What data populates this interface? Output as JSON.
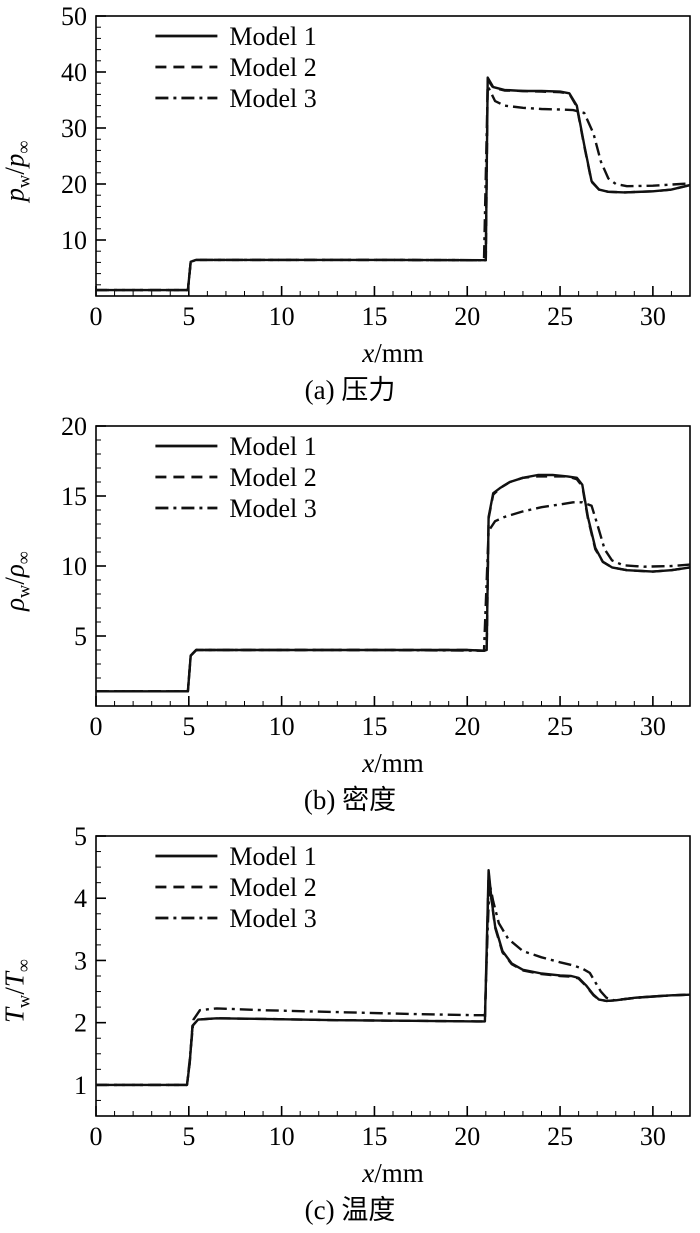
{
  "style": {
    "line_color": "#111111",
    "axis_color": "#000000",
    "background": "#ffffff"
  },
  "chart_data": [
    {
      "type": "line",
      "caption": "(a) 压力",
      "xlabel": {
        "var": "x",
        "unit": "/mm"
      },
      "ylabel": {
        "num": "p",
        "numsub": "w",
        "sep": "/",
        "den": "p",
        "densub": "∞"
      },
      "xlim": [
        0,
        32
      ],
      "ylim": [
        0,
        50
      ],
      "xticks": [
        0,
        5,
        10,
        15,
        20,
        25,
        30
      ],
      "yticks": [
        10,
        20,
        30,
        40,
        50
      ],
      "x_minor_step": 1,
      "y_minor_step": 2,
      "grid": false,
      "legend_position": "top-left",
      "series": [
        {
          "name": "Model 1",
          "dash": "solid",
          "points": [
            [
              0,
              1.05
            ],
            [
              4.95,
              1.05
            ],
            [
              5.1,
              6.1
            ],
            [
              5.4,
              6.45
            ],
            [
              8,
              6.45
            ],
            [
              15,
              6.45
            ],
            [
              20.9,
              6.4
            ],
            [
              21.0,
              6.4
            ],
            [
              21.1,
              39.0
            ],
            [
              21.4,
              37.3
            ],
            [
              22,
              36.8
            ],
            [
              23,
              36.6
            ],
            [
              24,
              36.6
            ],
            [
              25,
              36.5
            ],
            [
              25.5,
              36.2
            ],
            [
              25.9,
              34.0
            ],
            [
              26.3,
              27.0
            ],
            [
              26.7,
              20.5
            ],
            [
              27.1,
              19.0
            ],
            [
              27.6,
              18.6
            ],
            [
              28.5,
              18.5
            ],
            [
              30,
              18.7
            ],
            [
              31,
              19.0
            ],
            [
              32,
              19.8
            ]
          ]
        },
        {
          "name": "Model 2",
          "dash": "dashed",
          "points": [
            [
              0,
              1.05
            ],
            [
              4.95,
              1.05
            ],
            [
              5.1,
              6.1
            ],
            [
              5.4,
              6.45
            ],
            [
              8,
              6.45
            ],
            [
              15,
              6.45
            ],
            [
              20.9,
              6.4
            ],
            [
              21.0,
              6.4
            ],
            [
              21.1,
              38.6
            ],
            [
              21.4,
              37.2
            ],
            [
              22,
              36.7
            ],
            [
              23,
              36.6
            ],
            [
              24,
              36.5
            ],
            [
              25,
              36.4
            ],
            [
              25.5,
              36.1
            ],
            [
              25.9,
              33.8
            ],
            [
              26.3,
              26.8
            ],
            [
              26.7,
              20.4
            ],
            [
              27.1,
              19.0
            ],
            [
              27.6,
              18.6
            ],
            [
              28.5,
              18.5
            ],
            [
              30,
              18.7
            ],
            [
              31,
              19.0
            ],
            [
              32,
              19.8
            ]
          ]
        },
        {
          "name": "Model 3",
          "dash": "dashdot",
          "points": [
            [
              0,
              1.05
            ],
            [
              4.95,
              1.05
            ],
            [
              5.1,
              6.1
            ],
            [
              5.4,
              6.45
            ],
            [
              15,
              6.45
            ],
            [
              20.9,
              6.4
            ],
            [
              21.1,
              37.5
            ],
            [
              21.5,
              34.8
            ],
            [
              22,
              34.0
            ],
            [
              23,
              33.6
            ],
            [
              24,
              33.4
            ],
            [
              25,
              33.3
            ],
            [
              25.7,
              33.2
            ],
            [
              26.3,
              32.7
            ],
            [
              26.8,
              29.0
            ],
            [
              27.2,
              24.0
            ],
            [
              27.6,
              21.0
            ],
            [
              28,
              20.0
            ],
            [
              28.6,
              19.6
            ],
            [
              30,
              19.7
            ],
            [
              31.5,
              20.0
            ],
            [
              32,
              20.1
            ]
          ]
        }
      ]
    },
    {
      "type": "line",
      "caption": "(b) 密度",
      "xlabel": {
        "var": "x",
        "unit": "/mm"
      },
      "ylabel": {
        "num": "ρ",
        "numsub": "w",
        "sep": "/",
        "den": "ρ",
        "densub": "∞"
      },
      "xlim": [
        0,
        32
      ],
      "ylim": [
        0,
        20
      ],
      "xticks": [
        0,
        5,
        10,
        15,
        20,
        25,
        30
      ],
      "yticks": [
        5,
        10,
        15,
        20
      ],
      "x_minor_step": 1,
      "y_minor_step": 1,
      "grid": false,
      "legend_position": "top-left",
      "series": [
        {
          "name": "Model 1",
          "dash": "solid",
          "points": [
            [
              0,
              1.05
            ],
            [
              4.95,
              1.05
            ],
            [
              5.1,
              3.6
            ],
            [
              5.4,
              4.0
            ],
            [
              10,
              4.0
            ],
            [
              20,
              4.0
            ],
            [
              20.9,
              3.95
            ],
            [
              21.05,
              4.0
            ],
            [
              21.15,
              13.5
            ],
            [
              21.4,
              15.2
            ],
            [
              21.8,
              15.6
            ],
            [
              22.3,
              16.0
            ],
            [
              23,
              16.3
            ],
            [
              23.8,
              16.5
            ],
            [
              24.6,
              16.5
            ],
            [
              25.4,
              16.4
            ],
            [
              25.9,
              16.3
            ],
            [
              26.2,
              15.8
            ],
            [
              26.5,
              13.5
            ],
            [
              26.9,
              11.3
            ],
            [
              27.3,
              10.3
            ],
            [
              27.8,
              9.9
            ],
            [
              28.6,
              9.7
            ],
            [
              30,
              9.6
            ],
            [
              31,
              9.7
            ],
            [
              32,
              9.9
            ]
          ]
        },
        {
          "name": "Model 2",
          "dash": "dashed",
          "points": [
            [
              0,
              1.05
            ],
            [
              4.95,
              1.05
            ],
            [
              5.1,
              3.6
            ],
            [
              5.4,
              4.0
            ],
            [
              10,
              4.0
            ],
            [
              20,
              4.0
            ],
            [
              20.9,
              3.95
            ],
            [
              21.05,
              4.0
            ],
            [
              21.15,
              13.4
            ],
            [
              21.4,
              15.1
            ],
            [
              21.8,
              15.6
            ],
            [
              22.3,
              16.0
            ],
            [
              23,
              16.3
            ],
            [
              23.8,
              16.4
            ],
            [
              24.6,
              16.4
            ],
            [
              25.4,
              16.4
            ],
            [
              25.9,
              16.2
            ],
            [
              26.2,
              15.7
            ],
            [
              26.5,
              13.4
            ],
            [
              26.9,
              11.2
            ],
            [
              27.3,
              10.3
            ],
            [
              27.8,
              9.9
            ],
            [
              28.6,
              9.7
            ],
            [
              30,
              9.6
            ],
            [
              31,
              9.7
            ],
            [
              32,
              9.9
            ]
          ]
        },
        {
          "name": "Model 3",
          "dash": "dashdot",
          "points": [
            [
              0,
              1.05
            ],
            [
              4.95,
              1.05
            ],
            [
              5.1,
              3.6
            ],
            [
              5.4,
              4.0
            ],
            [
              15,
              4.0
            ],
            [
              20.9,
              3.95
            ],
            [
              21.15,
              12.5
            ],
            [
              21.5,
              13.2
            ],
            [
              22,
              13.5
            ],
            [
              23,
              13.9
            ],
            [
              24,
              14.2
            ],
            [
              25,
              14.4
            ],
            [
              25.7,
              14.55
            ],
            [
              26.2,
              14.55
            ],
            [
              26.7,
              14.3
            ],
            [
              27.0,
              13.0
            ],
            [
              27.4,
              11.2
            ],
            [
              27.8,
              10.4
            ],
            [
              28.4,
              10.05
            ],
            [
              29.5,
              9.95
            ],
            [
              31,
              10.0
            ],
            [
              32,
              10.1
            ]
          ]
        }
      ]
    },
    {
      "type": "line",
      "caption": "(c) 温度",
      "xlabel": {
        "var": "x",
        "unit": "/mm"
      },
      "ylabel": {
        "num": "T",
        "numsub": "w",
        "sep": "/",
        "den": "T",
        "densub": "∞"
      },
      "xlim": [
        0,
        32
      ],
      "ylim": [
        0.5,
        5
      ],
      "xticks": [
        0,
        5,
        10,
        15,
        20,
        25,
        30
      ],
      "yticks": [
        1,
        2,
        3,
        4,
        5
      ],
      "x_minor_step": 1,
      "y_minor_step": 0.25,
      "grid": false,
      "legend_position": "top-left",
      "series": [
        {
          "name": "Model 1",
          "dash": "solid",
          "points": [
            [
              0,
              1.0
            ],
            [
              4.9,
              1.0
            ],
            [
              5.05,
              1.35
            ],
            [
              5.2,
              1.95
            ],
            [
              5.5,
              2.05
            ],
            [
              6.5,
              2.07
            ],
            [
              9,
              2.06
            ],
            [
              13,
              2.04
            ],
            [
              17,
              2.03
            ],
            [
              20.5,
              2.02
            ],
            [
              20.95,
              2.02
            ],
            [
              21.05,
              3.2
            ],
            [
              21.15,
              4.45
            ],
            [
              21.3,
              4.0
            ],
            [
              21.5,
              3.55
            ],
            [
              21.9,
              3.15
            ],
            [
              22.4,
              2.95
            ],
            [
              23,
              2.85
            ],
            [
              24,
              2.79
            ],
            [
              25,
              2.76
            ],
            [
              25.6,
              2.75
            ],
            [
              26,
              2.72
            ],
            [
              26.4,
              2.6
            ],
            [
              26.8,
              2.45
            ],
            [
              27.1,
              2.37
            ],
            [
              27.5,
              2.35
            ],
            [
              28,
              2.36
            ],
            [
              29,
              2.4
            ],
            [
              30,
              2.42
            ],
            [
              31,
              2.44
            ],
            [
              32,
              2.45
            ]
          ]
        },
        {
          "name": "Model 2",
          "dash": "dashed",
          "points": [
            [
              0,
              1.0
            ],
            [
              4.9,
              1.0
            ],
            [
              5.05,
              1.35
            ],
            [
              5.2,
              1.95
            ],
            [
              5.5,
              2.05
            ],
            [
              6.5,
              2.07
            ],
            [
              9,
              2.06
            ],
            [
              13,
              2.04
            ],
            [
              17,
              2.03
            ],
            [
              20.5,
              2.02
            ],
            [
              20.95,
              2.02
            ],
            [
              21.05,
              3.1
            ],
            [
              21.15,
              4.4
            ],
            [
              21.3,
              3.98
            ],
            [
              21.5,
              3.53
            ],
            [
              21.9,
              3.13
            ],
            [
              22.4,
              2.94
            ],
            [
              23,
              2.84
            ],
            [
              24,
              2.78
            ],
            [
              25,
              2.75
            ],
            [
              25.6,
              2.74
            ],
            [
              26,
              2.71
            ],
            [
              26.4,
              2.59
            ],
            [
              26.8,
              2.44
            ],
            [
              27.1,
              2.37
            ],
            [
              27.5,
              2.35
            ],
            [
              28,
              2.36
            ],
            [
              29,
              2.4
            ],
            [
              30,
              2.42
            ],
            [
              31,
              2.44
            ],
            [
              32,
              2.45
            ]
          ]
        },
        {
          "name": "Model 3",
          "dash": "dashdot",
          "points": [
            [
              0,
              1.0
            ],
            [
              4.9,
              1.0
            ],
            [
              5.05,
              1.4
            ],
            [
              5.25,
              2.05
            ],
            [
              5.6,
              2.2
            ],
            [
              6.5,
              2.23
            ],
            [
              9,
              2.2
            ],
            [
              13,
              2.17
            ],
            [
              17,
              2.14
            ],
            [
              20.5,
              2.12
            ],
            [
              20.95,
              2.12
            ],
            [
              21.1,
              3.5
            ],
            [
              21.2,
              4.25
            ],
            [
              21.4,
              3.95
            ],
            [
              21.7,
              3.6
            ],
            [
              22.2,
              3.35
            ],
            [
              23,
              3.15
            ],
            [
              24,
              3.05
            ],
            [
              25,
              2.97
            ],
            [
              25.7,
              2.92
            ],
            [
              26.2,
              2.87
            ],
            [
              26.6,
              2.8
            ],
            [
              26.9,
              2.65
            ],
            [
              27.2,
              2.5
            ],
            [
              27.5,
              2.4
            ],
            [
              27.9,
              2.36
            ],
            [
              28.5,
              2.38
            ],
            [
              29.5,
              2.41
            ],
            [
              31,
              2.44
            ],
            [
              32,
              2.45
            ]
          ]
        }
      ]
    }
  ]
}
